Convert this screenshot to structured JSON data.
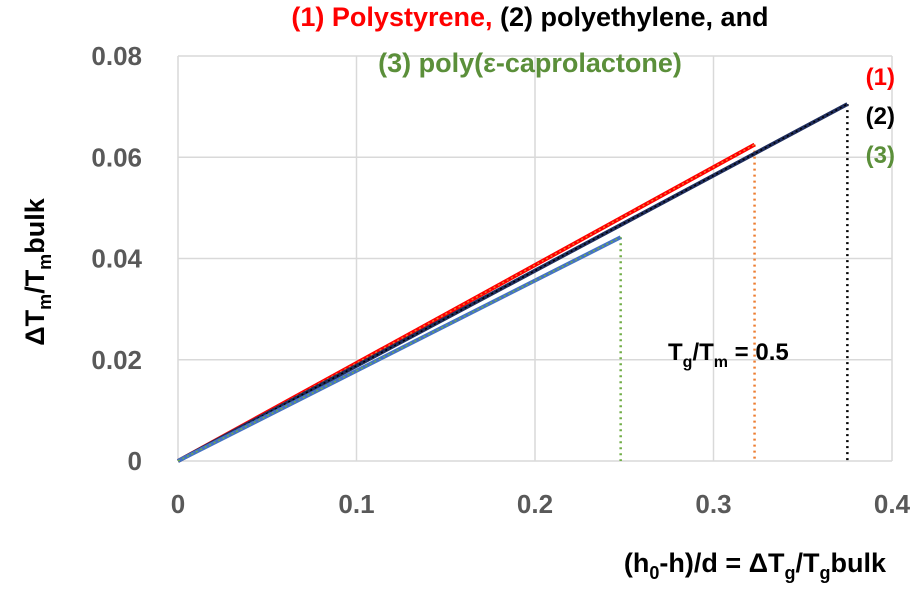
{
  "chart_data": {
    "type": "line",
    "title": {
      "line1": [
        {
          "text": "(1) Polystyrene,",
          "color": "#ff0000"
        },
        {
          "text": " (2) polyethylene, and",
          "color": "#000000"
        }
      ],
      "line2": [
        {
          "text": "(3) poly(ε-caprolactone)",
          "color": "#5b8f3a"
        }
      ]
    },
    "xlabel": {
      "p1": "(h",
      "sub1": "0",
      "p2": "-h)/d = ΔT",
      "sub2": "g",
      "p3": "/T",
      "sub3": "g",
      "p4": "bulk"
    },
    "ylabel": {
      "p1": "ΔT",
      "sub1": "m",
      "p2": "/T",
      "sub2": "m",
      "p3": "bulk"
    },
    "xlim": [
      0,
      0.4
    ],
    "ylim": [
      0,
      0.08
    ],
    "xticks": [
      0,
      0.1,
      0.2,
      0.3,
      0.4
    ],
    "yticks": [
      0,
      0.02,
      0.04,
      0.06,
      0.08
    ],
    "xtick_labels": [
      "0",
      "0.1",
      "0.2",
      "0.3",
      "0.4"
    ],
    "ytick_labels": [
      "0",
      "0.02",
      "0.04",
      "0.06",
      "0.08"
    ],
    "grid": true,
    "series": [
      {
        "label": "(1)",
        "color": "#ff0000",
        "x": [
          0,
          0.323
        ],
        "y": [
          0,
          0.0625
        ],
        "drop_color": "#ed7d31",
        "dash_color": "#ed7d31"
      },
      {
        "label": "(2)",
        "color": "#1f2d5c",
        "x": [
          0,
          0.375
        ],
        "y": [
          0,
          0.0705
        ],
        "drop_color": "#000000",
        "dash_color": "#000000"
      },
      {
        "label": "(3)",
        "color": "#4472c4",
        "x": [
          0,
          0.248
        ],
        "y": [
          0,
          0.0442
        ],
        "drop_color": "#70ad47",
        "dash_color": "#70ad47"
      }
    ],
    "annotation": {
      "p1": "T",
      "sub1": "g",
      "p2": "/T",
      "sub2": "m",
      "p3": " = 0.5"
    }
  }
}
